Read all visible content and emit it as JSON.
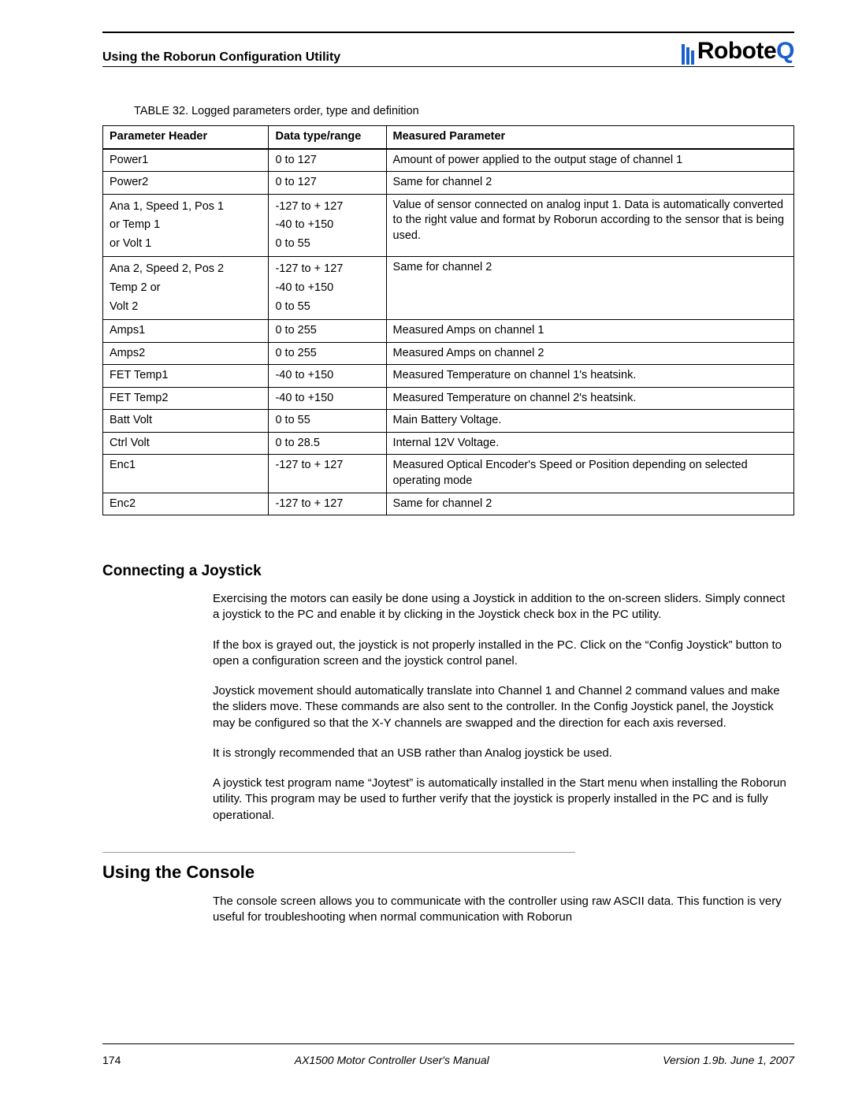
{
  "header": {
    "section_title": "Using the Roborun Configuration Utility",
    "logo_text_pre": "Robote",
    "logo_text_q": "Q",
    "logo_bar_color": "#1a5fd0"
  },
  "table": {
    "caption": "TABLE 32. Logged parameters order, type and definition",
    "columns": [
      "Parameter Header",
      "Data type/range",
      "Measured Parameter"
    ],
    "rows": [
      {
        "ph": [
          "Power1"
        ],
        "dt": [
          "0 to 127"
        ],
        "mp": "Amount of power applied to the output stage of channel 1"
      },
      {
        "ph": [
          "Power2"
        ],
        "dt": [
          "0 to 127"
        ],
        "mp": "Same for channel 2"
      },
      {
        "ph": [
          "Ana 1, Speed 1, Pos 1",
          "or Temp 1",
          "or Volt 1"
        ],
        "dt": [
          "-127 to + 127",
          "-40 to +150",
          "0 to 55"
        ],
        "mp": "Value of sensor connected on analog input 1. Data is automatically converted to the right value and format by Roborun according to the sensor that is being used."
      },
      {
        "ph": [
          "Ana 2, Speed 2, Pos 2",
          "Temp 2 or",
          "Volt 2"
        ],
        "dt": [
          "-127 to + 127",
          "-40 to +150",
          "0 to 55"
        ],
        "mp": "Same for channel 2"
      },
      {
        "ph": [
          "Amps1"
        ],
        "dt": [
          "0 to 255"
        ],
        "mp": "Measured Amps on channel 1"
      },
      {
        "ph": [
          "Amps2"
        ],
        "dt": [
          "0 to 255"
        ],
        "mp": "Measured Amps on channel 2"
      },
      {
        "ph": [
          "FET Temp1"
        ],
        "dt": [
          "-40 to +150"
        ],
        "mp": "Measured Temperature on channel 1's heatsink."
      },
      {
        "ph": [
          "FET Temp2"
        ],
        "dt": [
          "-40 to +150"
        ],
        "mp": "Measured Temperature on channel 2's heatsink."
      },
      {
        "ph": [
          "Batt Volt"
        ],
        "dt": [
          "0 to 55"
        ],
        "mp": "Main Battery Voltage."
      },
      {
        "ph": [
          "Ctrl Volt"
        ],
        "dt": [
          "0 to 28.5"
        ],
        "mp": "Internal 12V Voltage."
      },
      {
        "ph": [
          "Enc1"
        ],
        "dt": [
          "-127 to + 127"
        ],
        "mp": "Measured Optical Encoder's Speed or Position depending on selected operating mode"
      },
      {
        "ph": [
          "Enc2"
        ],
        "dt": [
          "-127 to + 127"
        ],
        "mp": "Same for channel 2"
      }
    ]
  },
  "section_joystick": {
    "heading": "Connecting a Joystick",
    "paragraphs": [
      "Exercising the motors can easily be done using a Joystick in addition to the on-screen sliders. Simply connect a joystick to the PC and enable it by clicking in the Joystick check box in the PC utility.",
      "If the box is grayed out, the joystick is not properly installed in the PC. Click on the “Config Joystick” button to open a configuration screen and the joystick control panel.",
      "Joystick movement should automatically translate into Channel 1 and Channel 2 command values and make the sliders move. These commands are also sent to the controller. In the Config Joystick panel, the Joystick may be configured so that the X-Y channels are swapped and the direction for each axis reversed.",
      "It is strongly recommended that an USB rather than Analog joystick be used.",
      "A joystick test program name “Joytest” is automatically installed in the Start menu when installing the Roborun utility. This program may be used to further verify that the joystick is properly installed in the PC and is fully operational."
    ]
  },
  "section_console": {
    "heading": "Using the Console",
    "paragraphs": [
      "The console screen allows you to communicate with the controller using raw ASCII data. This function is very useful for troubleshooting when normal communication with Roborun"
    ]
  },
  "footer": {
    "page_number": "174",
    "doc_title": "AX1500 Motor Controller User's Manual",
    "version": "Version 1.9b. June 1, 2007"
  }
}
